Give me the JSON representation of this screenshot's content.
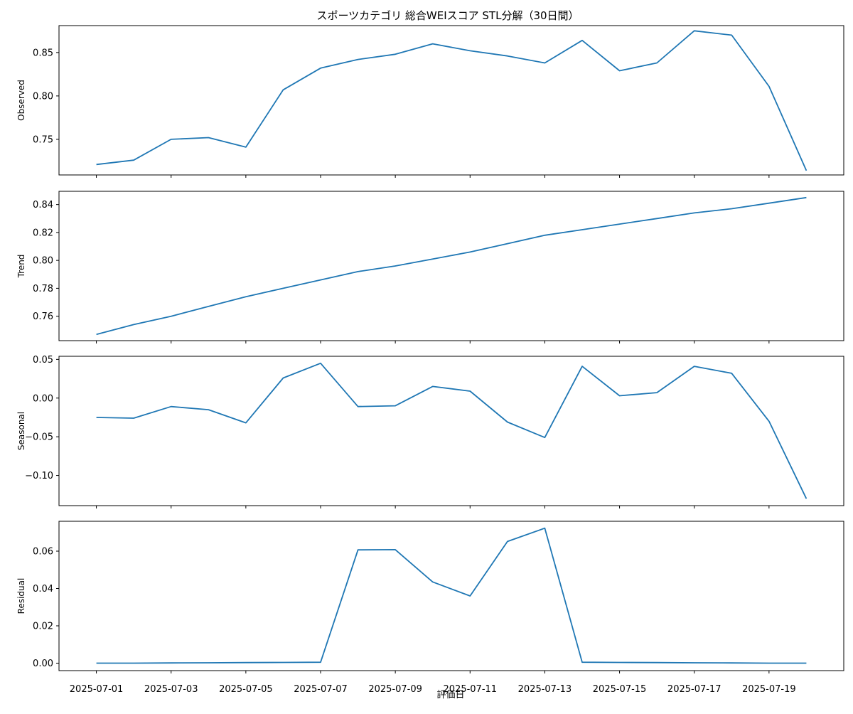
{
  "chart_data": {
    "type": "line",
    "title": "スポーツカテゴリ 総合WEIスコア STL分解（30日間）",
    "xlabel": "評価日",
    "x": [
      "2025-07-01",
      "2025-07-02",
      "2025-07-03",
      "2025-07-04",
      "2025-07-05",
      "2025-07-06",
      "2025-07-07",
      "2025-07-08",
      "2025-07-09",
      "2025-07-10",
      "2025-07-11",
      "2025-07-12",
      "2025-07-13",
      "2025-07-14",
      "2025-07-15",
      "2025-07-16",
      "2025-07-17",
      "2025-07-18",
      "2025-07-19",
      "2025-07-20"
    ],
    "x_tick_labels": [
      "2025-07-01",
      "2025-07-03",
      "2025-07-05",
      "2025-07-07",
      "2025-07-09",
      "2025-07-11",
      "2025-07-13",
      "2025-07-15",
      "2025-07-17",
      "2025-07-19"
    ],
    "x_tick_dates": [
      "2025-07-01",
      "2025-07-03",
      "2025-07-05",
      "2025-07-07",
      "2025-07-09",
      "2025-07-11",
      "2025-07-13",
      "2025-07-15",
      "2025-07-17",
      "2025-07-19"
    ],
    "xlim": [
      "2025-06-30",
      "2025-07-21"
    ],
    "panels": [
      {
        "ylabel": "Observed",
        "ylim": [
          0.709,
          0.881
        ],
        "yticks": [
          0.75,
          0.8,
          0.85
        ],
        "ytick_labels": [
          "0.75",
          "0.80",
          "0.85"
        ],
        "values": [
          0.721,
          0.726,
          0.75,
          0.752,
          0.741,
          0.807,
          0.832,
          0.842,
          0.848,
          0.86,
          0.852,
          0.846,
          0.838,
          0.864,
          0.829,
          0.838,
          0.875,
          0.87,
          0.811,
          0.714
        ]
      },
      {
        "ylabel": "Trend",
        "ylim": [
          0.7425,
          0.8495
        ],
        "yticks": [
          0.76,
          0.78,
          0.8,
          0.82,
          0.84
        ],
        "ytick_labels": [
          "0.76",
          "0.78",
          "0.80",
          "0.82",
          "0.84"
        ],
        "values": [
          0.747,
          0.754,
          0.76,
          0.767,
          0.774,
          0.78,
          0.786,
          0.792,
          0.796,
          0.801,
          0.806,
          0.812,
          0.818,
          0.822,
          0.826,
          0.83,
          0.834,
          0.837,
          0.841,
          0.845
        ]
      },
      {
        "ylabel": "Seasonal",
        "ylim": [
          -0.139,
          0.054
        ],
        "yticks": [
          -0.1,
          -0.05,
          0.0,
          0.05
        ],
        "ytick_labels": [
          "−0.10",
          "−0.05",
          "0.00",
          "0.05"
        ],
        "values": [
          -0.025,
          -0.026,
          -0.011,
          -0.015,
          -0.032,
          0.026,
          0.045,
          -0.011,
          -0.01,
          0.015,
          0.009,
          -0.031,
          -0.051,
          0.041,
          0.003,
          0.007,
          0.041,
          0.032,
          -0.03,
          -0.13
        ]
      },
      {
        "ylabel": "Residual",
        "ylim": [
          -0.004,
          0.076
        ],
        "yticks": [
          0.0,
          0.02,
          0.04,
          0.06
        ],
        "ytick_labels": [
          "0.00",
          "0.02",
          "0.04",
          "0.06"
        ],
        "values": [
          0.0,
          0.0,
          0.0001,
          0.0002,
          0.0003,
          0.0004,
          0.0005,
          0.0607,
          0.0608,
          0.0435,
          0.036,
          0.0652,
          0.0723,
          0.0005,
          0.0004,
          0.0003,
          0.0002,
          0.0001,
          0.0,
          0.0
        ]
      }
    ],
    "grid": false,
    "colors": {
      "line": "#1f77b4",
      "frame": "#000000",
      "background": "#ffffff"
    }
  }
}
